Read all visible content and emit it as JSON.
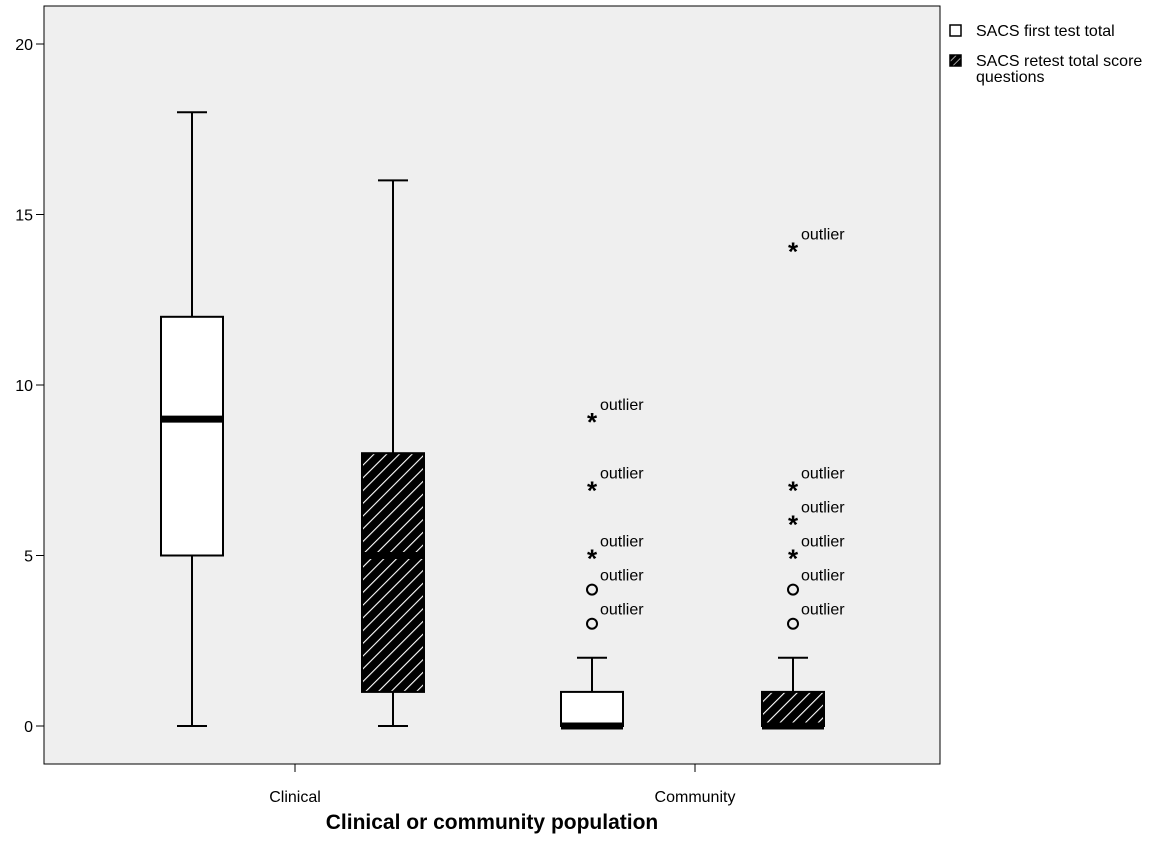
{
  "chart_data": {
    "type": "box",
    "title": "",
    "xlabel": "Clinical or community population",
    "ylabel": "",
    "ylim": [
      -2,
      21
    ],
    "y_ticks": [
      0,
      5,
      10,
      15,
      20
    ],
    "grid": false,
    "legend_position": "top-right, outside plot",
    "plot_background": "#efefef",
    "categories": [
      "Clinical",
      "Community"
    ],
    "series": [
      {
        "name": "SACS first test total",
        "pattern": "white",
        "boxes": [
          {
            "category": "Clinical",
            "min": 0,
            "q1": 5,
            "median": 9,
            "q3": 12,
            "max": 18,
            "outliers": []
          },
          {
            "category": "Community",
            "min": 0,
            "q1": 0,
            "median": 0,
            "q3": 1,
            "max": 2,
            "outliers": [
              {
                "value": 9,
                "marker": "*",
                "label": "outlier"
              },
              {
                "value": 7,
                "marker": "*",
                "label": "outlier"
              },
              {
                "value": 5,
                "marker": "*",
                "label": "outlier"
              },
              {
                "value": 4,
                "marker": "o",
                "label": "outlier"
              },
              {
                "value": 3,
                "marker": "o",
                "label": "outlier"
              }
            ]
          }
        ]
      },
      {
        "name": "SACS retest total score questions",
        "pattern": "hatched",
        "boxes": [
          {
            "category": "Clinical",
            "min": 0,
            "q1": 1,
            "median": 5,
            "q3": 8,
            "max": 16,
            "outliers": []
          },
          {
            "category": "Community",
            "min": 0,
            "q1": 0,
            "median": 0,
            "q3": 1,
            "max": 2,
            "outliers": [
              {
                "value": 14,
                "marker": "*",
                "label": "outlier"
              },
              {
                "value": 7,
                "marker": "*",
                "label": "outlier"
              },
              {
                "value": 6,
                "marker": "*",
                "label": "outlier"
              },
              {
                "value": 5,
                "marker": "*",
                "label": "outlier"
              },
              {
                "value": 4,
                "marker": "o",
                "label": "outlier"
              },
              {
                "value": 3,
                "marker": "o",
                "label": "outlier"
              }
            ]
          }
        ]
      }
    ]
  },
  "legend": {
    "items": [
      {
        "label_lines": [
          "SACS first test total"
        ],
        "pattern": "white"
      },
      {
        "label_lines": [
          "SACS retest total score",
          "questions"
        ],
        "pattern": "hatched"
      }
    ]
  }
}
